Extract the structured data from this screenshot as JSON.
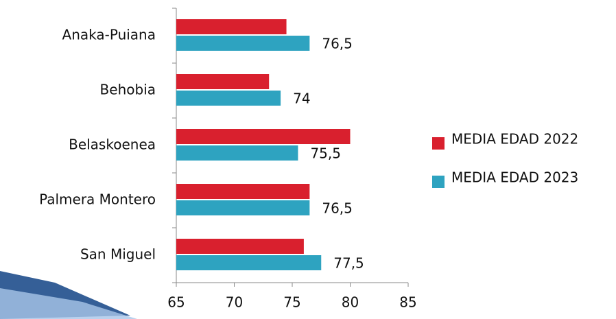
{
  "chart_data": {
    "type": "bar",
    "orientation": "horizontal",
    "categories": [
      "Anaka-Puiana",
      "Behobia",
      "Belaskoenea",
      "Palmera Montero",
      "San Miguel"
    ],
    "series": [
      {
        "name": "MEDIA EDAD 2022",
        "color": "#d9202e",
        "values": [
          74.5,
          73,
          80,
          76.5,
          76
        ]
      },
      {
        "name": "MEDIA EDAD 2023",
        "color": "#2ea3c0",
        "values": [
          76.5,
          74,
          75.5,
          76.5,
          77.5
        ],
        "value_labels": [
          "76,5",
          "74",
          "75,5",
          "76,5",
          "77,5"
        ]
      }
    ],
    "xlim": [
      65,
      85
    ],
    "xticks": [
      65,
      70,
      75,
      80,
      85
    ],
    "grid": false,
    "legend": "right"
  }
}
